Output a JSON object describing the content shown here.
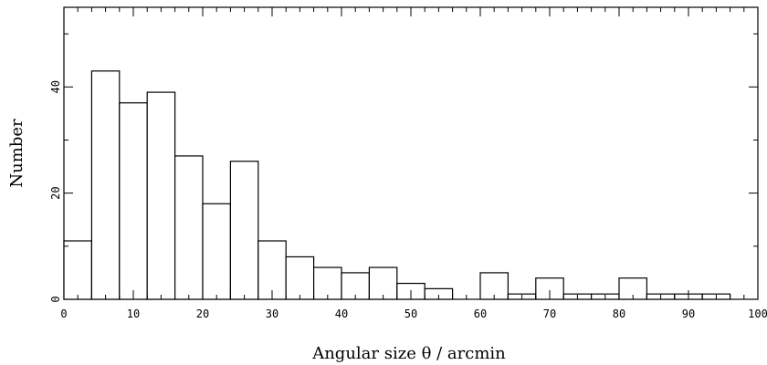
{
  "chart_data": {
    "type": "bar",
    "bin_edges": [
      0,
      4,
      8,
      12,
      16,
      20,
      24,
      28,
      32,
      36,
      40,
      44,
      48,
      52,
      56,
      60,
      64,
      68,
      72,
      76,
      80,
      84,
      88,
      92,
      96
    ],
    "values": [
      11,
      43,
      37,
      39,
      27,
      18,
      26,
      11,
      8,
      6,
      5,
      6,
      3,
      2,
      0,
      5,
      1,
      4,
      1,
      1,
      4,
      1,
      1,
      1
    ],
    "xlabel": "Angular size θ / arcmin",
    "ylabel": "Number",
    "xlim": [
      0,
      100
    ],
    "ylim": [
      0,
      55
    ],
    "x_ticks": [
      0,
      10,
      20,
      30,
      40,
      50,
      60,
      70,
      80,
      90,
      100
    ],
    "y_ticks": [
      0,
      20,
      40
    ],
    "grid": false,
    "legend": "none"
  }
}
